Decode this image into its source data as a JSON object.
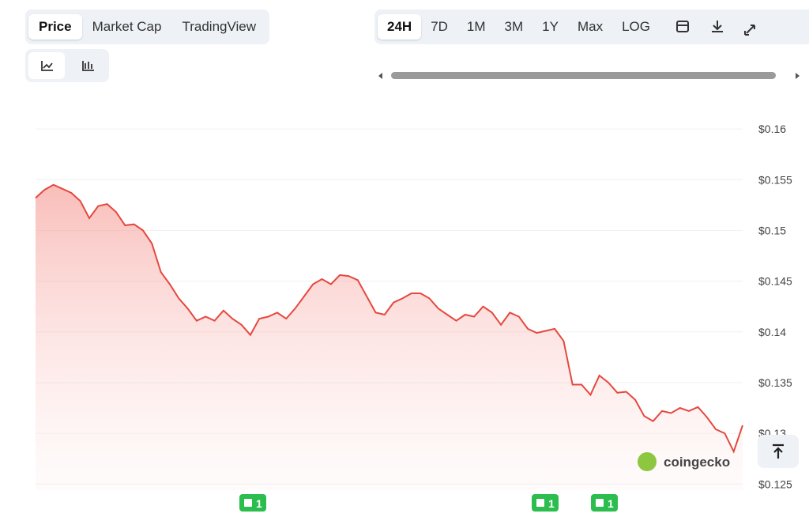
{
  "tabs": [
    "Price",
    "Market Cap",
    "TradingView"
  ],
  "ranges": [
    "24H",
    "7D",
    "1M",
    "3M",
    "1Y",
    "Max",
    "LOG"
  ],
  "chart_data": {
    "type": "line",
    "watermark": "coingecko",
    "annotations": [
      "1",
      "1",
      "1"
    ],
    "series": [
      {
        "color": "#e5483f",
        "values": [
          0.1532,
          0.154,
          0.1545,
          0.1541,
          0.1537,
          0.1529,
          0.1512,
          0.1524,
          0.1526,
          0.1518,
          0.1505,
          0.1506,
          0.15,
          0.1487,
          0.1459,
          0.1447,
          0.1433,
          0.1423,
          0.1411,
          0.1415,
          0.1411,
          0.1421,
          0.1413,
          0.1407,
          0.1397,
          0.1413,
          0.1415,
          0.1419,
          0.1413,
          0.1423,
          0.1435,
          0.1447,
          0.1452,
          0.1447,
          0.1456,
          0.1455,
          0.1451,
          0.1435,
          0.1419,
          0.1417,
          0.1429,
          0.1433,
          0.1438,
          0.1438,
          0.1433,
          0.1423,
          0.1417,
          0.1411,
          0.1417,
          0.1415,
          0.1425,
          0.1419,
          0.1407,
          0.1419,
          0.1415,
          0.1403,
          0.1399,
          0.1401,
          0.1403,
          0.1391,
          0.1348,
          0.1348,
          0.1338,
          0.1357,
          0.135,
          0.134,
          0.1341,
          0.1333,
          0.1317,
          0.1312,
          0.1322,
          0.132,
          0.1325,
          0.1322,
          0.1326,
          0.1316,
          0.1304,
          0.13,
          0.1282,
          0.1308
        ]
      }
    ],
    "ylim": [
      0.1244,
      0.1618
    ],
    "yticks": [
      {
        "value": 0.125,
        "label": "$0.125"
      },
      {
        "value": 0.13,
        "label": "$0.13"
      },
      {
        "value": 0.135,
        "label": "$0.135"
      },
      {
        "value": 0.14,
        "label": "$0.14"
      },
      {
        "value": 0.145,
        "label": "$0.145"
      },
      {
        "value": 0.15,
        "label": "$0.15"
      },
      {
        "value": 0.155,
        "label": "$0.155"
      },
      {
        "value": 0.16,
        "label": "$0.16"
      }
    ],
    "grid": true
  }
}
